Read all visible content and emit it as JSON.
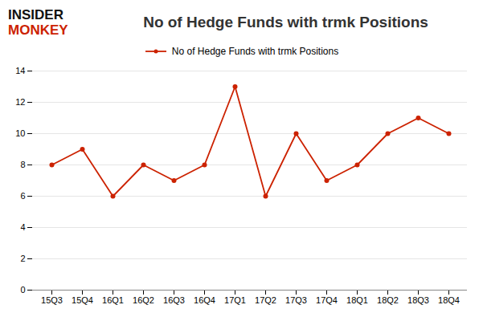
{
  "chart_data": {
    "type": "line",
    "title": "No of Hedge Funds with trmk Positions",
    "annotations": [
      {
        "text": "INSIDER",
        "color": "#111111"
      },
      {
        "text": "MONKEY",
        "color": "#cc2200"
      }
    ],
    "categories": [
      "15Q3",
      "15Q4",
      "16Q1",
      "16Q2",
      "16Q3",
      "16Q4",
      "17Q1",
      "17Q2",
      "17Q3",
      "17Q4",
      "18Q1",
      "18Q2",
      "18Q3",
      "18Q4"
    ],
    "series": [
      {
        "name": "No of Hedge Funds with trmk Positions",
        "color": "#cc2200",
        "marker": "circle",
        "values": [
          8,
          9,
          6,
          8,
          7,
          8,
          13,
          6,
          10,
          7,
          8,
          10,
          11,
          10
        ]
      }
    ],
    "ylim": [
      0,
      14
    ],
    "yticks": [
      0,
      2,
      4,
      6,
      8,
      10,
      12,
      14
    ],
    "grid": true,
    "legend": "top"
  }
}
